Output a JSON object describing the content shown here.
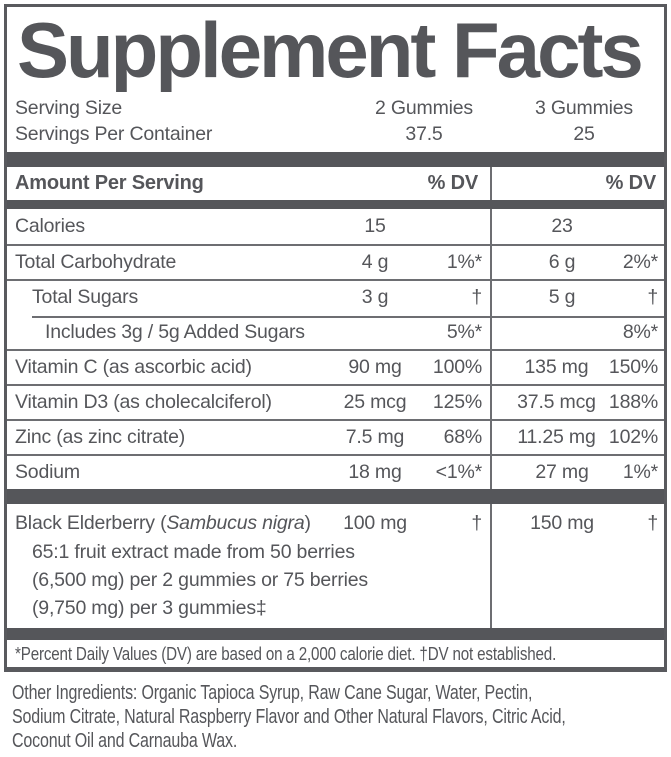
{
  "label": {
    "title": "Supplement Facts",
    "serving": {
      "rows": [
        {
          "label": "Serving Size",
          "col1": "2 Gummies",
          "col2": "3 Gummies"
        },
        {
          "label": "Servings Per Container",
          "col1": "37.5",
          "col2": "25"
        }
      ]
    },
    "header": {
      "amount_label": "Amount Per Serving",
      "dv1": "% DV",
      "dv2": "% DV"
    },
    "rows": [
      {
        "name": "Calories",
        "amt1": "15",
        "dv1": "",
        "amt2": "23",
        "dv2": "",
        "indent": 0
      },
      {
        "name": "Total Carbohydrate",
        "amt1": "4 g",
        "dv1": "1%*",
        "amt2": "6 g",
        "dv2": "2%*",
        "indent": 0
      },
      {
        "name": "Total Sugars",
        "amt1": "3 g",
        "dv1": "†",
        "amt2": "5 g",
        "dv2": "†",
        "indent": 1
      },
      {
        "name": "Includes 3g / 5g Added Sugars",
        "amt1": "",
        "dv1": "5%*",
        "amt2": "",
        "dv2": "8%*",
        "indent": 2
      },
      {
        "name": "Vitamin C (as ascorbic acid)",
        "amt1": "90 mg",
        "dv1": "100%",
        "amt2": "135 mg",
        "dv2": "150%",
        "indent": 0
      },
      {
        "name": "Vitamin D3 (as cholecalciferol)",
        "amt1": "25 mcg",
        "dv1": "125%",
        "amt2": "37.5 mcg",
        "dv2": "188%",
        "indent": 0
      },
      {
        "name": "Zinc (as zinc citrate)",
        "amt1": "7.5 mg",
        "dv1": "68%",
        "amt2": "11.25 mg",
        "dv2": "102%",
        "indent": 0
      },
      {
        "name": "Sodium",
        "amt1": "18 mg",
        "dv1": "<1%*",
        "amt2": "27 mg",
        "dv2": "1%*",
        "indent": 0
      }
    ],
    "elderberry": {
      "name_prefix": "Black Elderberry (",
      "name_italic": "Sambucus nigra",
      "name_suffix": ")",
      "amt1": "100 mg",
      "dv1": "†",
      "amt2": "150 mg",
      "dv2": "†",
      "sub_lines": [
        "65:1 fruit extract made from 50 berries",
        "(6,500 mg) per 2 gummies or 75 berries",
        "(9,750 mg) per 3 gummies‡"
      ]
    },
    "footnote": "*Percent Daily Values (DV) are based on a 2,000 calorie diet. †DV not established.",
    "other_ingredients": {
      "lines": [
        "Other Ingredients: Organic Tapioca Syrup, Raw Cane Sugar, Water, Pectin,",
        "Sodium Citrate, Natural Raspberry Flavor and Other Natural Flavors, Citric Acid,",
        "Coconut Oil and Carnauba Wax."
      ]
    },
    "colors": {
      "text": "#55565a",
      "bar": "#55565a",
      "separator": "#6d6e72",
      "border": "#595a5e",
      "background": "#ffffff"
    }
  }
}
